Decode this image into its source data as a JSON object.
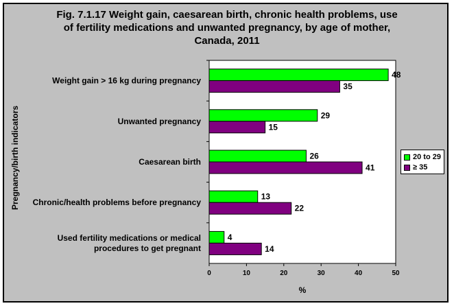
{
  "chart_data": {
    "type": "bar",
    "orientation": "horizontal",
    "title_lines": [
      "Fig. 7.1.17 Weight gain, caesarean birth, chronic health problems, use",
      "of fertility medications and unwanted pregnancy, by age of mother,",
      "Canada, 2011"
    ],
    "categories": [
      [
        "Weight gain > 16 kg during pregnancy"
      ],
      [
        "Unwanted pregnancy"
      ],
      [
        "Caesarean birth"
      ],
      [
        "Chronic/health problems before pregnancy"
      ],
      [
        "Used fertility medications or medical",
        "procedures to get pregnant"
      ]
    ],
    "series": [
      {
        "name": "20 to 29",
        "color": "#00ff00",
        "values": [
          48,
          29,
          26,
          13,
          4
        ]
      },
      {
        "name": "≥ 35",
        "color": "#800080",
        "values": [
          35,
          15,
          41,
          22,
          14
        ]
      }
    ],
    "data_labels": [
      [
        "48",
        "29",
        "26",
        "13",
        "4"
      ],
      [
        "35",
        "15",
        "41",
        "22",
        "14"
      ]
    ],
    "xlabel": "%",
    "ylabel": "Pregnancy/birth indicators",
    "xlim": [
      0,
      50
    ],
    "xticks": [
      "0",
      "10",
      "20",
      "30",
      "40",
      "50"
    ],
    "grid": false,
    "legend_position": "right"
  }
}
